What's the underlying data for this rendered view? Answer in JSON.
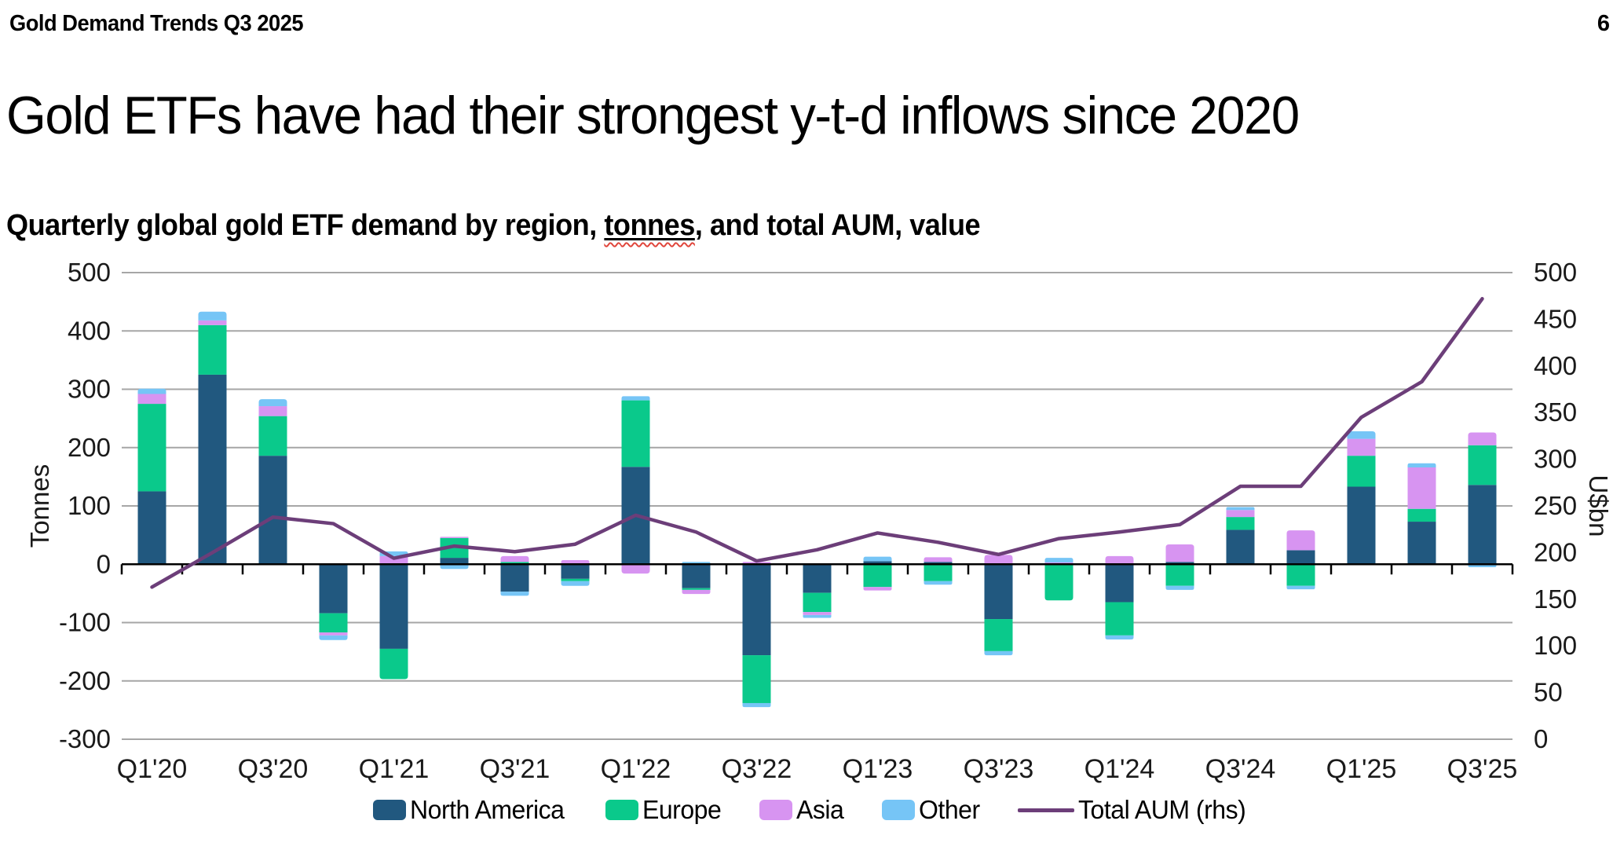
{
  "page": {
    "header": "Gold Demand Trends Q3 2025",
    "page_number": "6",
    "title": "Gold ETFs have had their strongest y-t-d inflows since 2020",
    "subtitle_prefix": "Quarterly global gold ETF demand by region, ",
    "subtitle_underlined": "tonnes",
    "subtitle_suffix": ", and total AUM, value"
  },
  "chart_data": {
    "type": "bar",
    "subtype": "stacked-bars-with-secondary-axis-line",
    "categories": [
      "Q1'20",
      "Q2'20",
      "Q3'20",
      "Q4'20",
      "Q1'21",
      "Q2'21",
      "Q3'21",
      "Q4'21",
      "Q1'22",
      "Q2'22",
      "Q3'22",
      "Q4'22",
      "Q1'23",
      "Q2'23",
      "Q3'23",
      "Q4'23",
      "Q1'24",
      "Q2'24",
      "Q3'24",
      "Q4'24",
      "Q1'25",
      "Q2'25",
      "Q3'25"
    ],
    "x_tick_labels": [
      "Q1'20",
      "Q3'20",
      "Q1'21",
      "Q3'21",
      "Q1'22",
      "Q3'22",
      "Q1'23",
      "Q3'23",
      "Q1'24",
      "Q3'24",
      "Q1'25",
      "Q3'25"
    ],
    "series": [
      {
        "name": "North America",
        "type": "bar",
        "color": "#21587F",
        "values": [
          125,
          325,
          186,
          -84,
          -145,
          11,
          -47,
          -25,
          167,
          -41,
          -156,
          -49,
          5,
          4,
          -94,
          0,
          -65,
          4,
          59,
          24,
          133,
          73,
          136
        ]
      },
      {
        "name": "Europe",
        "type": "bar",
        "color": "#0AC98B",
        "values": [
          150,
          85,
          68,
          -33,
          -52,
          34,
          4,
          -4,
          114,
          -3,
          -82,
          -33,
          -39,
          -29,
          -55,
          -62,
          -57,
          -37,
          22,
          -37,
          53,
          22,
          68
        ]
      },
      {
        "name": "Asia",
        "type": "bar",
        "color": "#D794F1",
        "values": [
          17,
          8,
          17,
          -5,
          14,
          2,
          10,
          7,
          -16,
          -7,
          4,
          -5,
          -6,
          8,
          16,
          3,
          14,
          30,
          12,
          34,
          29,
          71,
          22
        ]
      },
      {
        "name": "Other",
        "type": "bar",
        "color": "#76C5F6",
        "values": [
          9,
          15,
          12,
          -8,
          8,
          -8,
          -7,
          -8,
          7,
          4,
          -7,
          -5,
          8,
          -6,
          -7,
          8,
          -7,
          -7,
          5,
          -6,
          13,
          7,
          -5
        ]
      },
      {
        "name": "Total AUM (rhs)",
        "type": "line",
        "axis": "right",
        "color": "#6C3E79",
        "values": [
          163,
          200,
          238,
          231,
          194,
          207,
          201,
          209,
          240,
          222,
          191,
          203,
          221,
          211,
          198,
          215,
          222,
          230,
          271,
          271,
          345,
          383,
          472
        ]
      }
    ],
    "left_axis": {
      "label": "Tonnes",
      "min": -300,
      "max": 500,
      "step": 100,
      "ticks": [
        500,
        400,
        300,
        200,
        100,
        0,
        -100,
        -200,
        -300
      ]
    },
    "right_axis": {
      "label": "U$bn",
      "min": 0,
      "max": 500,
      "step": 50,
      "ticks": [
        500,
        450,
        400,
        350,
        300,
        250,
        200,
        150,
        100,
        50,
        0
      ]
    },
    "grid": true,
    "gridline_color": "#A6A6A6",
    "axis_color": "#000000",
    "legend_position": "bottom"
  }
}
